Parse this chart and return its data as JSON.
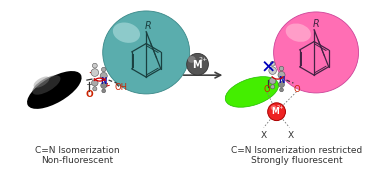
{
  "bg_color": "#ffffff",
  "arrow_color": "#404040",
  "left_ellipse_color_dark": "#1a1a1a",
  "left_ellipse_color_light": "#cccccc",
  "teal_sphere_color": "#5aadad",
  "teal_sphere_edge": "#3a8888",
  "green_ellipse_color": "#44ee00",
  "green_ellipse_edge": "#22bb00",
  "pink_sphere_color": "#ff6eb4",
  "pink_sphere_edge": "#cc4499",
  "red_sphere_color": "#ee2222",
  "red_sphere_edge": "#aa0000",
  "dark_sphere_color": "#555555",
  "dark_sphere_edge": "#333333",
  "mol_line_color": "#333333",
  "mol_dark_color": "#1a4040",
  "mol_pink_color": "#442244",
  "atom_fill": "#aaaaaa",
  "atom_edge": "#666666",
  "n_color": "#1111aa",
  "o_color": "#cc2200",
  "x_color": "#0000bb",
  "text_color": "#333333",
  "red_arrow_color": "#cc0000",
  "dashed_color": "#777777",
  "text_left_line1": "C=N Isomerization",
  "text_left_line2": "Non-fluorescent",
  "text_right_line1": "C=N Isomerization restricted",
  "text_right_line2": "Strongly fluorescent",
  "font_size": 6.5
}
